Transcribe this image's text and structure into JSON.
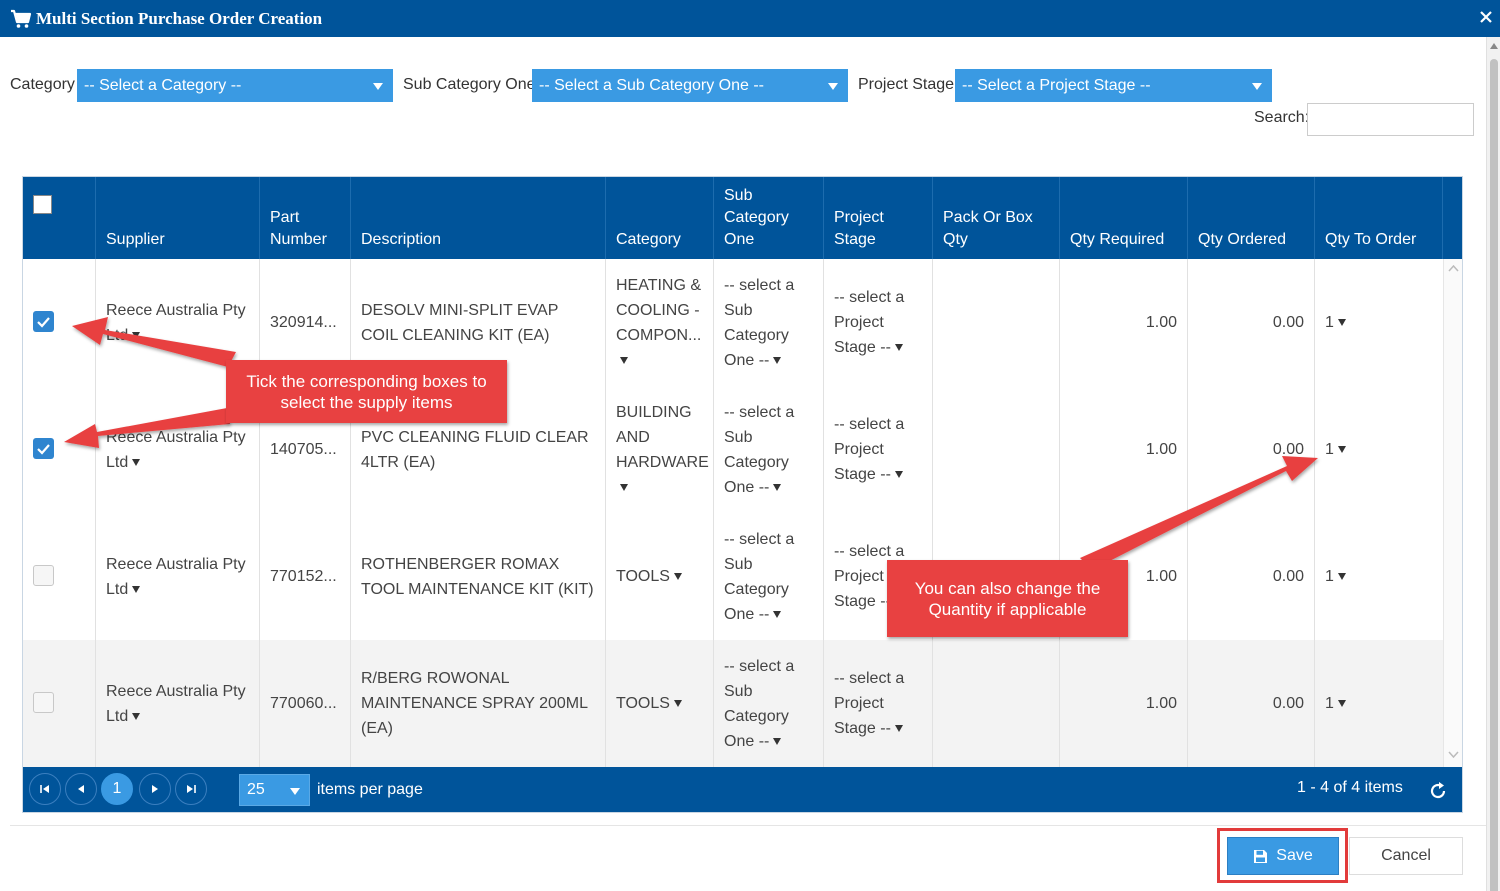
{
  "window": {
    "title": "Multi Section Purchase Order Creation"
  },
  "filters": {
    "category_label": "Category",
    "category_value": "-- Select a Category --",
    "subcategory_label": "Sub Category One",
    "subcategory_value": "-- Select a Sub Category One --",
    "stage_label": "Project Stage",
    "stage_value": "-- Select a Project Stage --",
    "search_label": "Search:",
    "search_value": ""
  },
  "table": {
    "headers": {
      "supplier": "Supplier",
      "part_number": "Part Number",
      "description": "Description",
      "category": "Category",
      "sub_category_one": "Sub Category One",
      "project_stage": "Project Stage",
      "pack_or_box_qty": "Pack Or Box Qty",
      "qty_required": "Qty Required",
      "qty_ordered": "Qty Ordered",
      "qty_to_order": "Qty To Order"
    },
    "rows": [
      {
        "checked": true,
        "supplier": "Reece Australia Pty Ltd",
        "part_number": "320914...",
        "description": "DESOLV MINI-SPLIT EVAP COIL CLEANING KIT (EA)",
        "category": "HEATING & COOLING -COMPON...",
        "sub_category_one": "-- select a Sub Category One --",
        "project_stage": "-- select a Project Stage --",
        "pack_or_box_qty": "",
        "qty_required": "1.00",
        "qty_ordered": "0.00",
        "qty_to_order": "1"
      },
      {
        "checked": true,
        "supplier": "Reece Australia Pty Ltd",
        "part_number": "140705...",
        "description": "PVC CLEANING FLUID CLEAR 4LTR (EA)",
        "category": "BUILDING AND HARDWARE",
        "sub_category_one": "-- select a Sub Category One --",
        "project_stage": "-- select a Project Stage --",
        "pack_or_box_qty": "",
        "qty_required": "1.00",
        "qty_ordered": "0.00",
        "qty_to_order": "1"
      },
      {
        "checked": false,
        "supplier": "Reece Australia Pty Ltd",
        "part_number": "770152...",
        "description": "ROTHENBERGER ROMAX TOOL MAINTENANCE KIT (KIT)",
        "category": "TOOLS",
        "sub_category_one": "-- select a Sub Category One --",
        "project_stage": "-- select a Project Stage --",
        "pack_or_box_qty": "",
        "qty_required": "1.00",
        "qty_ordered": "0.00",
        "qty_to_order": "1"
      },
      {
        "checked": false,
        "supplier": "Reece Australia Pty Ltd",
        "part_number": "770060...",
        "description": "R/BERG ROWONAL MAINTENANCE SPRAY 200ML (EA)",
        "category": "TOOLS",
        "sub_category_one": "-- select a Sub Category One --",
        "project_stage": "-- select a Project Stage --",
        "pack_or_box_qty": "",
        "qty_required": "1.00",
        "qty_ordered": "0.00",
        "qty_to_order": "1"
      }
    ]
  },
  "pager": {
    "current_page": "1",
    "page_size": "25",
    "items_per_page_label": "items per page",
    "info": "1 - 4 of 4 items"
  },
  "footer": {
    "save_label": "Save",
    "cancel_label": "Cancel"
  },
  "annotations": {
    "tick_note": "Tick the corresponding boxes to select the supply items",
    "qty_note": "You can also change the Quantity if applicable"
  },
  "colors": {
    "header_blue": "#00549a",
    "accent_blue": "#3a9ae3",
    "callout_red": "#e84141"
  }
}
